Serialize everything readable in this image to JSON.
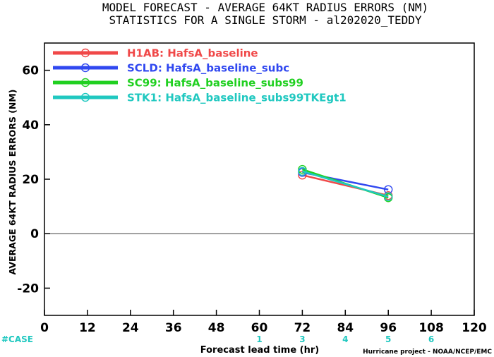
{
  "chart_data": {
    "type": "line",
    "title": "MODEL FORECAST - AVERAGE 64KT RADIUS ERRORS (NM)",
    "subtitle": "STATISTICS FOR A SINGLE STORM - al202020_TEDDY",
    "xlabel": "Forecast lead time (hr)",
    "ylabel": "AVERAGE 64KT RADIUS ERRORS (NM)",
    "xlim": [
      0,
      120
    ],
    "ylim": [
      -30,
      70
    ],
    "xticks": [
      0,
      12,
      24,
      36,
      48,
      60,
      72,
      84,
      96,
      108,
      120
    ],
    "yticks": [
      -20,
      0,
      20,
      40,
      60
    ],
    "x": [
      72,
      96
    ],
    "series": [
      {
        "name": "H1AB: HafsA_baseline",
        "color": "#f04848",
        "values": [
          21.5,
          14.0
        ]
      },
      {
        "name": "SCLD: HafsA_baseline_subc",
        "color": "#3048f0",
        "values": [
          22.5,
          16.2
        ]
      },
      {
        "name": "SC99: HafsA_baseline_subs99",
        "color": "#20d020",
        "values": [
          23.6,
          13.2
        ]
      },
      {
        "name": "STK1: HafsA_baseline_subs99TKEgt1",
        "color": "#20c8c0",
        "values": [
          22.9,
          13.6
        ]
      }
    ],
    "legend_position": "top-left",
    "case_label": "#CASE",
    "case_counts": [
      {
        "x": 60,
        "count": "1"
      },
      {
        "x": 72,
        "count": "3"
      },
      {
        "x": 84,
        "count": "4"
      },
      {
        "x": 96,
        "count": "5"
      },
      {
        "x": 108,
        "count": "6"
      }
    ],
    "case_color": "#20c8c0",
    "credit": "Hurricane project - NOAA/NCEP/EMC"
  }
}
